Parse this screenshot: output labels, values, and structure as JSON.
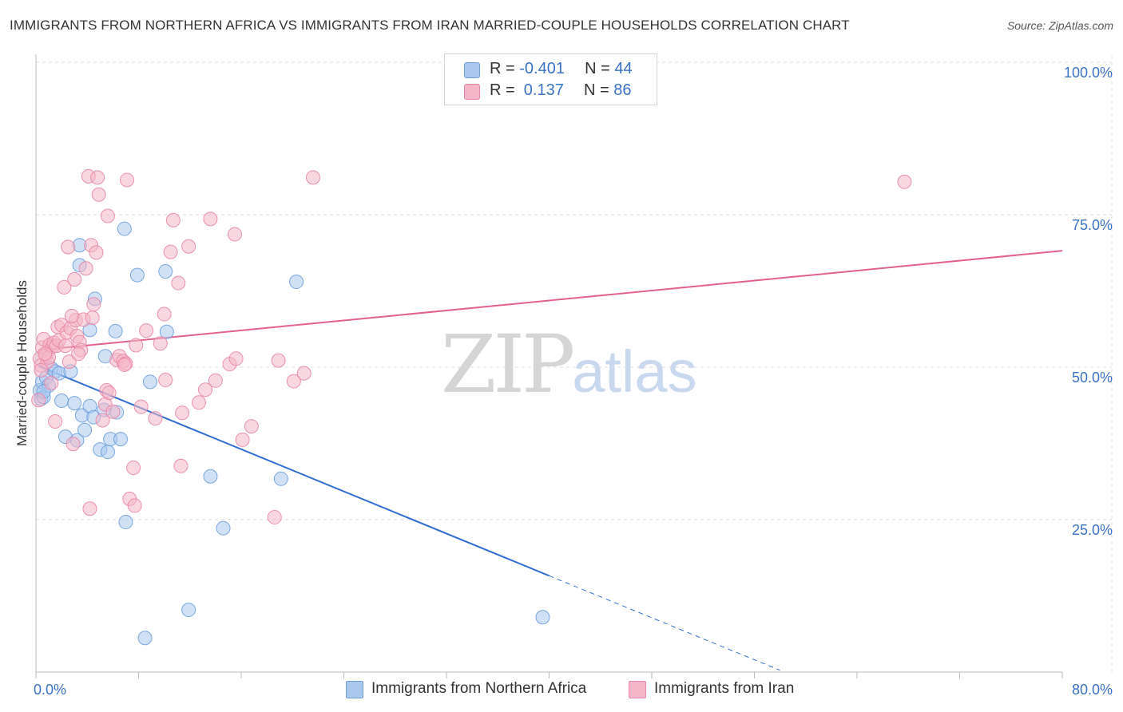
{
  "title": "IMMIGRANTS FROM NORTHERN AFRICA VS IMMIGRANTS FROM IRAN MARRIED-COUPLE HOUSEHOLDS CORRELATION CHART",
  "source": "Source: ZipAtlas.com",
  "watermark": {
    "zip": "ZIP",
    "atlas": "atlas"
  },
  "legend": {
    "rows": [
      {
        "r_label": "R =",
        "r_value": "-0.401",
        "n_label": "N =",
        "n_value": "44",
        "color": "#aac8ee"
      },
      {
        "r_label": "R =",
        "r_value": " 0.137",
        "n_label": "N =",
        "n_value": "86",
        "color": "#f4b6c8"
      }
    ]
  },
  "bottom_legend": {
    "items": [
      {
        "label": "Immigrants from Northern Africa",
        "color": "#aac8ee"
      },
      {
        "label": "Immigrants from Iran",
        "color": "#f4b6c8"
      }
    ]
  },
  "chart_data": {
    "type": "scatter",
    "title": "IMMIGRANTS FROM NORTHERN AFRICA VS IMMIGRANTS FROM IRAN MARRIED-COUPLE HOUSEHOLDS CORRELATION CHART",
    "xlabel": "",
    "ylabel": "Married-couple Households",
    "xlim": [
      0,
      80
    ],
    "ylim": [
      0,
      100
    ],
    "x_tick_labels": [
      "0.0%",
      "80.0%"
    ],
    "y_tick_labels": [
      "100.0%",
      "75.0%",
      "50.0%",
      "25.0%"
    ],
    "y_ticks": [
      100,
      75,
      50,
      25
    ],
    "grid": true,
    "legend_position": "top-center",
    "series": [
      {
        "name": "Immigrants from Northern Africa",
        "color": "#6b9fdc",
        "fill": "#aac8ee",
        "R": -0.401,
        "N": 44,
        "trend": {
          "x_start": 0.2,
          "y_start": 50.2,
          "x_solid_end": 40,
          "y_solid_end": 15.8,
          "x_dash_end": 58,
          "y_dash_end": 0.3
        },
        "points": [
          [
            0.3,
            46.2
          ],
          [
            0.4,
            44.8
          ],
          [
            0.5,
            47.6
          ],
          [
            0.6,
            45.1
          ],
          [
            0.8,
            48.3
          ],
          [
            1.0,
            47.0
          ],
          [
            1.2,
            49.8
          ],
          [
            1.5,
            49.3
          ],
          [
            1.8,
            49.0
          ],
          [
            2.0,
            44.5
          ],
          [
            2.3,
            38.6
          ],
          [
            2.7,
            49.3
          ],
          [
            3.0,
            44.1
          ],
          [
            3.2,
            38.0
          ],
          [
            3.4,
            66.7
          ],
          [
            3.4,
            70.0
          ],
          [
            3.6,
            42.1
          ],
          [
            3.8,
            39.7
          ],
          [
            4.2,
            56.1
          ],
          [
            4.2,
            43.6
          ],
          [
            4.5,
            41.8
          ],
          [
            4.6,
            61.2
          ],
          [
            5.0,
            36.5
          ],
          [
            5.3,
            43.0
          ],
          [
            5.4,
            51.8
          ],
          [
            5.6,
            36.1
          ],
          [
            5.8,
            38.2
          ],
          [
            6.2,
            55.9
          ],
          [
            6.3,
            42.6
          ],
          [
            6.6,
            38.2
          ],
          [
            6.9,
            72.7
          ],
          [
            7.0,
            24.6
          ],
          [
            7.9,
            65.1
          ],
          [
            8.5,
            5.6
          ],
          [
            8.9,
            47.6
          ],
          [
            10.1,
            65.7
          ],
          [
            10.2,
            55.8
          ],
          [
            11.9,
            10.2
          ],
          [
            13.6,
            32.1
          ],
          [
            14.6,
            23.6
          ],
          [
            19.1,
            31.7
          ],
          [
            20.3,
            64.0
          ],
          [
            39.5,
            9.0
          ],
          [
            0.6,
            46.0
          ]
        ]
      },
      {
        "name": "Immigrants from Iran",
        "color": "#e886a6",
        "fill": "#f4b6c8",
        "R": 0.137,
        "N": 86,
        "trend": {
          "x_start": 0.2,
          "y_start": 52.8,
          "x_end": 80,
          "y_end": 69.1
        },
        "points": [
          [
            0.2,
            44.6
          ],
          [
            0.3,
            51.4
          ],
          [
            0.4,
            50.3
          ],
          [
            0.5,
            53.2
          ],
          [
            0.6,
            54.6
          ],
          [
            0.8,
            52.0
          ],
          [
            0.9,
            50.9
          ],
          [
            1.0,
            51.6
          ],
          [
            1.1,
            53.7
          ],
          [
            1.3,
            53.4
          ],
          [
            1.4,
            54.0
          ],
          [
            1.5,
            41.1
          ],
          [
            1.6,
            53.5
          ],
          [
            1.7,
            56.6
          ],
          [
            1.8,
            54.4
          ],
          [
            2.0,
            56.9
          ],
          [
            2.2,
            63.1
          ],
          [
            2.3,
            53.5
          ],
          [
            2.4,
            55.7
          ],
          [
            2.5,
            69.7
          ],
          [
            2.6,
            50.9
          ],
          [
            2.7,
            56.4
          ],
          [
            2.9,
            37.4
          ],
          [
            3.0,
            64.4
          ],
          [
            3.1,
            57.7
          ],
          [
            3.2,
            55.1
          ],
          [
            3.4,
            54.1
          ],
          [
            3.5,
            52.8
          ],
          [
            3.7,
            57.8
          ],
          [
            3.9,
            66.2
          ],
          [
            4.1,
            81.3
          ],
          [
            4.2,
            26.8
          ],
          [
            4.3,
            70.0
          ],
          [
            4.4,
            58.1
          ],
          [
            4.5,
            60.3
          ],
          [
            4.7,
            68.8
          ],
          [
            4.8,
            81.1
          ],
          [
            4.9,
            78.3
          ],
          [
            5.2,
            41.3
          ],
          [
            5.4,
            43.9
          ],
          [
            5.5,
            46.2
          ],
          [
            5.6,
            74.8
          ],
          [
            6.0,
            42.7
          ],
          [
            6.3,
            51.2
          ],
          [
            6.5,
            51.8
          ],
          [
            6.8,
            51.0
          ],
          [
            7.0,
            50.6
          ],
          [
            7.1,
            80.7
          ],
          [
            7.3,
            28.4
          ],
          [
            7.6,
            33.5
          ],
          [
            7.7,
            27.3
          ],
          [
            7.8,
            53.6
          ],
          [
            8.2,
            43.5
          ],
          [
            8.6,
            56.0
          ],
          [
            9.3,
            41.6
          ],
          [
            10.0,
            58.7
          ],
          [
            10.1,
            47.9
          ],
          [
            10.5,
            68.9
          ],
          [
            10.7,
            74.1
          ],
          [
            11.1,
            63.8
          ],
          [
            11.3,
            33.8
          ],
          [
            11.4,
            42.5
          ],
          [
            11.9,
            69.8
          ],
          [
            12.7,
            44.2
          ],
          [
            13.2,
            46.3
          ],
          [
            13.6,
            74.3
          ],
          [
            14.0,
            47.8
          ],
          [
            15.1,
            50.5
          ],
          [
            15.5,
            71.8
          ],
          [
            15.6,
            51.4
          ],
          [
            16.1,
            38.1
          ],
          [
            16.8,
            40.3
          ],
          [
            18.6,
            25.4
          ],
          [
            18.9,
            51.1
          ],
          [
            20.1,
            47.7
          ],
          [
            20.9,
            49.0
          ],
          [
            21.6,
            81.1
          ],
          [
            67.7,
            80.4
          ],
          [
            0.4,
            49.5
          ],
          [
            0.7,
            52.2
          ],
          [
            1.2,
            47.4
          ],
          [
            2.8,
            58.4
          ],
          [
            3.3,
            52.2
          ],
          [
            5.7,
            45.8
          ],
          [
            6.9,
            50.4
          ],
          [
            9.7,
            53.9
          ]
        ]
      }
    ]
  }
}
